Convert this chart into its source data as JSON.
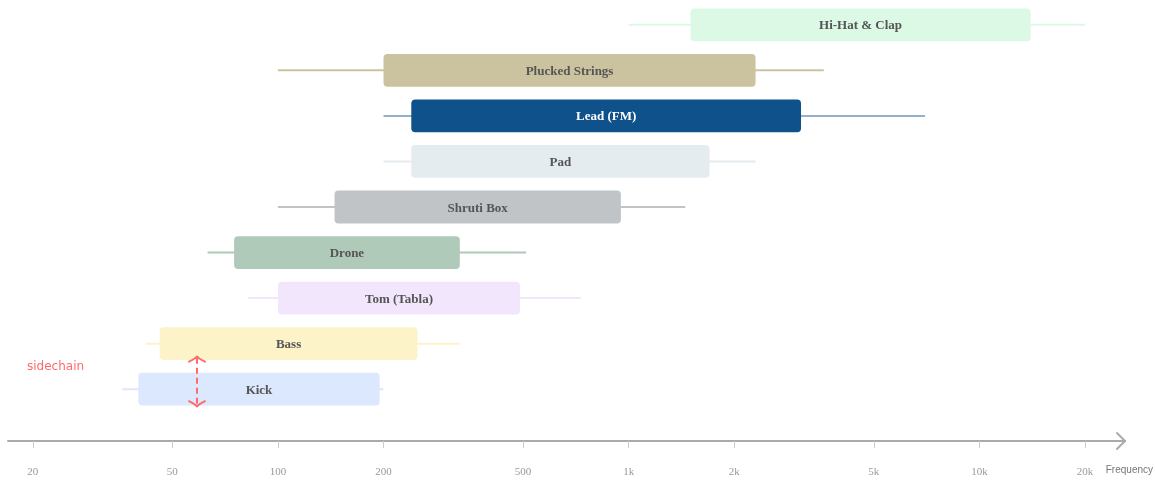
{
  "chart_data": {
    "type": "bar",
    "orientation": "horizontal",
    "xlabel": "Frequency",
    "log": "x",
    "tick_labels": "x",
    "grid": false,
    "categories": [
      "Hi-Hat & Clap",
      "Plucked Strings",
      "Lead (FM)",
      "Pad",
      "Shruti Box",
      "Drone",
      "Tom (Tabla)",
      "Bass",
      "Kick"
    ],
    "base": [
      1500,
      200,
      240,
      240,
      145,
      75,
      100,
      46,
      40
    ],
    "values": [
      12500,
      2100,
      2860,
      1460,
      805,
      255,
      390,
      204,
      155
    ],
    "errors": [
      [
        1000,
        20000
      ],
      [
        100,
        3600
      ],
      [
        200,
        7000
      ],
      [
        200,
        2300
      ],
      [
        100,
        1450
      ],
      [
        63,
        510
      ],
      [
        82,
        730
      ],
      [
        42,
        330
      ],
      [
        36,
        200
      ]
    ],
    "colors": [
      "#dcf9e6",
      "#cbc39f",
      "#0f528b",
      "#e4ecef",
      "#c0c4c7",
      "#afcab9",
      "#f2e6fd",
      "#fdf3c9",
      "#dce8fd"
    ],
    "xlim": [
      17,
      26000
    ],
    "xticks": [
      20,
      50,
      100,
      200,
      500,
      {
        "value": 1000,
        "label": "1k"
      },
      {
        "value": 2000,
        "label": "2k"
      },
      {
        "value": 5000,
        "label": "5k"
      },
      {
        "value": 10000,
        "label": "10k"
      },
      {
        "value": 20000,
        "label": "20k"
      }
    ],
    "annotations": [
      "sidechain"
    ]
  }
}
